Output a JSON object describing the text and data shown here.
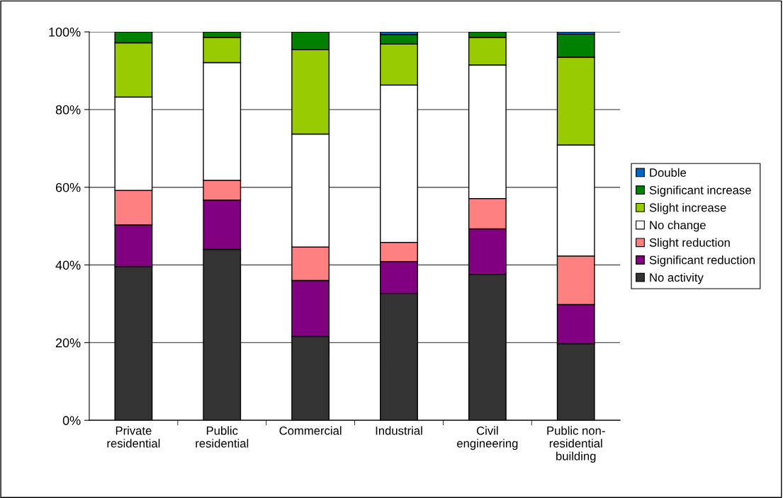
{
  "chart_data": {
    "type": "bar",
    "stacked": true,
    "categories": [
      "Private\nresidential",
      "Public\nresidential",
      "Commercial",
      "Industrial",
      "Civil\nengineering",
      "Public non-\nresidential\nbuilding"
    ],
    "series": [
      {
        "name": "No activity",
        "color": "#333333",
        "values": [
          39.5,
          44,
          21.6,
          32.6,
          37.5,
          19.7
        ]
      },
      {
        "name": "Significant reduction",
        "color": "#800080",
        "values": [
          10.8,
          12.7,
          14.4,
          8.3,
          11.8,
          10.1
        ]
      },
      {
        "name": "Slight reduction",
        "color": "#ff8080",
        "values": [
          8.9,
          5.1,
          8.6,
          4.9,
          7.8,
          12.5
        ]
      },
      {
        "name": "No change",
        "color": "#ffffff",
        "values": [
          24.0,
          30.3,
          29.1,
          40.5,
          34.4,
          28.6
        ]
      },
      {
        "name": "Slight increase",
        "color": "#99cc00",
        "values": [
          14.0,
          6.5,
          21.7,
          10.6,
          7.1,
          22.6
        ]
      },
      {
        "name": "Significant increase",
        "color": "#008000",
        "values": [
          2.8,
          1.4,
          4.6,
          2.4,
          1.4,
          5.9
        ]
      },
      {
        "name": "Double",
        "color": "#0066cc",
        "values": [
          0,
          0,
          0,
          0.7,
          0,
          0.6
        ]
      }
    ],
    "ylim": [
      0,
      100
    ],
    "yticks": [
      {
        "value": 0,
        "label": "0%"
      },
      {
        "value": 20,
        "label": "20%"
      },
      {
        "value": 40,
        "label": "40%"
      },
      {
        "value": 60,
        "label": "60%"
      },
      {
        "value": 80,
        "label": "80%"
      },
      {
        "value": 100,
        "label": "100%"
      }
    ],
    "grid": "y",
    "legend": "right"
  }
}
